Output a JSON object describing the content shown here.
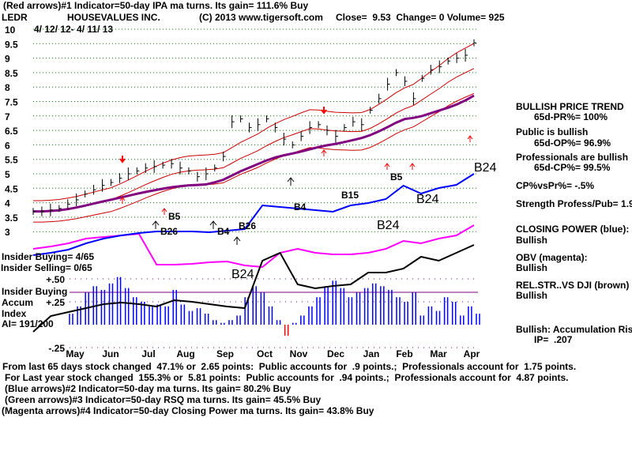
{
  "header": {
    "line1": "(Red arrows)#1 Indicator=50-day IPA ma turns. Its gain= 111.6% Buy",
    "symbol": "LEDR",
    "company": "HOUSEVALUES INC.",
    "copyright": "(C) 2013 www.tigersoft.com",
    "quote": "Close=  9.53  Change= 0 Volume= 925",
    "date_range": "4/ 12/ 12- 4/ 11/ 13"
  },
  "left_labels": {
    "insider_buying_count": "Insider Buying= 4/65",
    "insider_selling_count": "Insider Selling= 0/65",
    "insider_buying": "Insider Buying",
    "accum": "Accum",
    "index": "Index",
    "ai": "AI= 191/200"
  },
  "right_panel": {
    "trend": "BULLISH PRICE TREND",
    "pr": "65d-PR%= 100%",
    "public": "Public is bullish",
    "op": "65d-OP%= 96.9%",
    "pros": "Professionals are bullish",
    "cp": "65d-CP%= 99.5%",
    "cpvspr": "CP%vsPr%= -.5%",
    "strength": "Strength Profess/Pub= 1.9",
    "closing_power": "CLOSING POWER (blue):",
    "closing_power_state": "Bullish",
    "obv": "OBV (magenta):",
    "obv_state": "Bullish",
    "relstr": "REL.STR..VS DJI (brown)",
    "relstr_state": "Bullish",
    "accum": "Bullish: Accumulation Rising",
    "ip": "IP=  .207"
  },
  "footer": {
    "line1": "From last 65 days stock changed  47.1% or  2.65 points:  Public accounts for  .9 points.;  Professionals account for  1.75 points.",
    "line2": "For Last year stock changed  155.3% or  5.81 points:  Public accounts for  .94 points.;  Professionals account for  4.87 points.",
    "line3": "(Blue arrows)#2 Indicator=50-day ma turns. Its gain= 80.2% Buy",
    "line4": "(Green arrows)#3 Indicator=50-day RSQ ma turns. Its gain= 45.5% Buy",
    "line5": "(Magenta arrows)#4 Indicator=50-day Closing Power ma turns. Its gain= 43.8% Buy"
  },
  "chart_data": {
    "type": "line",
    "title": "HOUSEVALUES INC. (LEDR)",
    "price_ticks": [
      "10",
      "9.5",
      "9",
      "8.5",
      "8",
      "7.5",
      "7",
      "6.5",
      "6",
      "5.5",
      "5",
      "4.5",
      "4",
      "3.5",
      "3"
    ],
    "ylim": [
      3,
      10
    ],
    "months": [
      "May",
      "Jun",
      "Jul",
      "Aug",
      "Sep",
      "Oct",
      "Nov",
      "Dec",
      "Jan",
      "Feb",
      "Mar",
      "Apr"
    ],
    "accum_ticks": [
      "+.50",
      "+.25",
      "-.25"
    ],
    "price_close": [
      3.7,
      3.7,
      3.75,
      3.8,
      3.95,
      4.1,
      4.3,
      4.45,
      4.6,
      4.7,
      4.85,
      5.0,
      5.1,
      5.2,
      5.25,
      5.3,
      5.35,
      5.2,
      5.1,
      4.9,
      5.0,
      5.2,
      5.6,
      6.8,
      6.9,
      6.6,
      6.7,
      6.9,
      6.6,
      6.2,
      6.0,
      6.3,
      6.6,
      6.7,
      6.5,
      6.3,
      6.6,
      6.8,
      6.7,
      7.2,
      7.6,
      8.1,
      8.5,
      8.2,
      7.6,
      8.3,
      8.6,
      8.7,
      8.9,
      9.0,
      9.1,
      9.53
    ],
    "closing_power_blue": [
      7,
      10,
      14,
      22,
      28,
      32,
      35,
      37,
      37,
      37,
      36,
      38,
      40,
      70,
      68,
      66,
      64,
      62,
      70,
      73,
      78,
      95,
      85,
      92,
      96,
      110
    ],
    "obv_magenta": [
      15,
      18,
      22,
      28,
      30,
      32,
      34,
      -5,
      -5,
      -4,
      -2,
      -1,
      -6,
      -8,
      10,
      15,
      10,
      8,
      8,
      10,
      15,
      25,
      22,
      28,
      32,
      45
    ],
    "relstr_black": [
      -70,
      -50,
      -45,
      -40,
      -35,
      -33,
      -35,
      -38,
      -30,
      -32,
      -35,
      -38,
      -40,
      20,
      30,
      -10,
      -15,
      -12,
      -10,
      5,
      5,
      10,
      25,
      20,
      30,
      40
    ],
    "accum_index": [
      0.12,
      0.2,
      0.35,
      0.42,
      0.38,
      0.45,
      0.52,
      0.4,
      0.3,
      0.25,
      0.2,
      0.22,
      0.2,
      0.38,
      0.22,
      0.15,
      0.18,
      0.12,
      0.05,
      0.02,
      0.05,
      0.1,
      0.3,
      0.42,
      0.35,
      0.2,
      0.05,
      -0.12,
      0.02,
      0.1,
      0.2,
      0.3,
      0.42,
      0.48,
      0.4,
      0.3,
      0.35,
      0.4,
      0.45,
      0.42,
      0.38,
      0.3,
      0.25,
      0.35,
      0.1,
      0.2,
      0.15,
      0.3,
      0.25,
      0.1,
      0.2,
      0.12
    ],
    "signals": [
      {
        "label": "B5",
        "color": "#000000"
      },
      {
        "label": "B26",
        "color": "#000000"
      },
      {
        "label": "B4",
        "color": "#000000"
      },
      {
        "label": "B26",
        "color": "#000000"
      },
      {
        "label": "B4",
        "color": "#000000"
      },
      {
        "label": "B15",
        "color": "#000000"
      },
      {
        "label": "B5",
        "color": "#000000"
      },
      {
        "label": "B24",
        "color": "#000000"
      },
      {
        "label": "B24",
        "color": "#000000"
      },
      {
        "label": "B24",
        "color": "#000000"
      },
      {
        "label": "B24",
        "color": "#000000"
      }
    ],
    "colors": {
      "price": "#000000",
      "band": "#cc0000",
      "ma": "#800080",
      "cp": "#0000ff",
      "obv": "#ff00ff",
      "accum": "#0000ff",
      "grid": "#008000"
    }
  }
}
